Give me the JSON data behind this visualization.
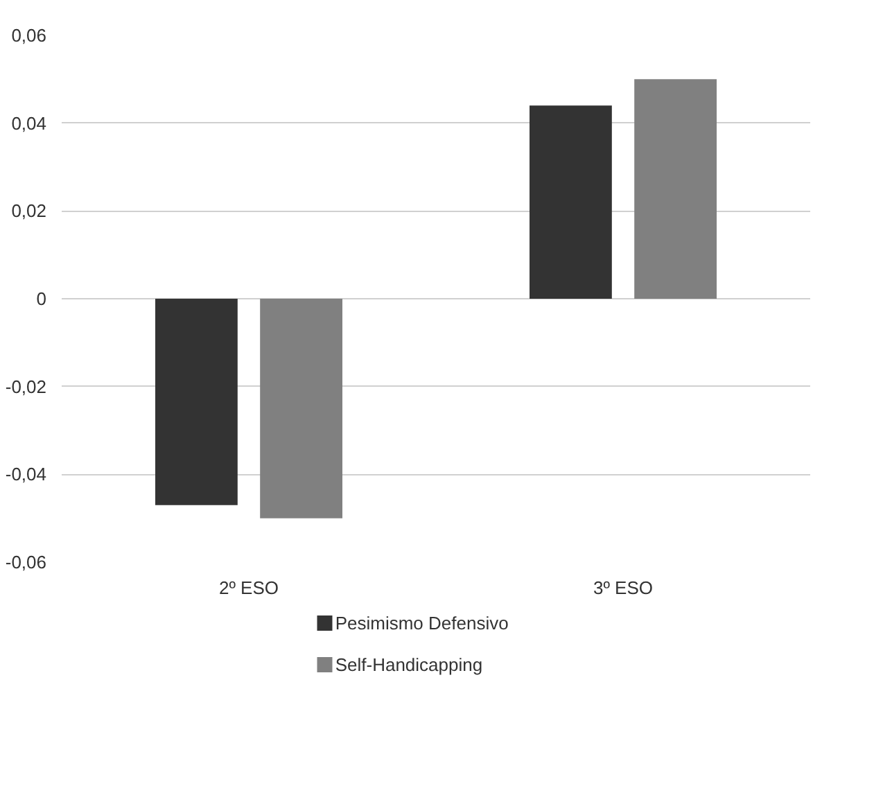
{
  "chart_data": {
    "type": "bar",
    "categories": [
      "2º ESO",
      "3º ESO"
    ],
    "series": [
      {
        "name": "Pesimismo Defensivo",
        "color": "#333333",
        "values": [
          -0.047,
          0.044
        ]
      },
      {
        "name": "Self-Handicapping",
        "color": "#808080",
        "values": [
          -0.05,
          0.05
        ]
      }
    ],
    "ylim": [
      -0.06,
      0.06
    ],
    "yticks": [
      {
        "value": -0.06,
        "label": "-0,06"
      },
      {
        "value": -0.04,
        "label": "-0,04"
      },
      {
        "value": -0.02,
        "label": "-0,02"
      },
      {
        "value": 0,
        "label": "0"
      },
      {
        "value": 0.02,
        "label": "0,02"
      },
      {
        "value": 0.04,
        "label": "0,04"
      },
      {
        "value": 0.06,
        "label": "0,06"
      }
    ],
    "grid": "y",
    "legend": "bottom"
  }
}
